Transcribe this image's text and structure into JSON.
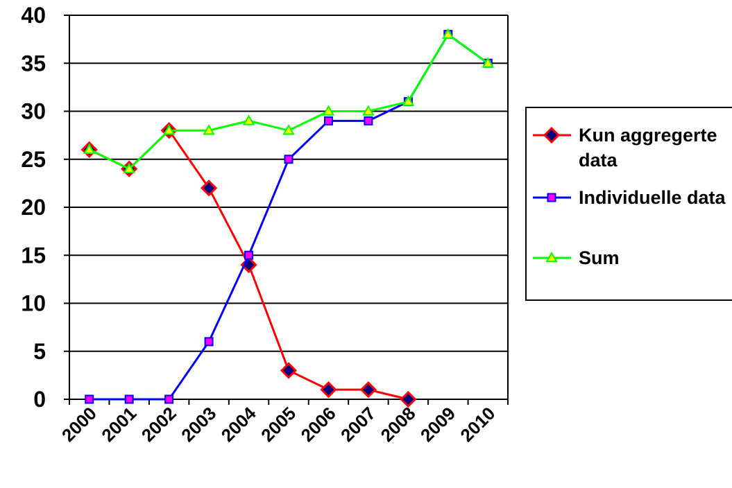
{
  "chart_data": {
    "type": "line",
    "title": "",
    "xlabel": "",
    "ylabel": "",
    "categories": [
      "2000",
      "2001",
      "2002",
      "2003",
      "2004",
      "2005",
      "2006",
      "2007",
      "2008",
      "2009",
      "2010"
    ],
    "ylim": [
      0,
      40
    ],
    "yticks": [
      "0",
      "5",
      "10",
      "15",
      "20",
      "25",
      "30",
      "35",
      "40"
    ],
    "grid": "horizontal",
    "legend_position": "right",
    "series": [
      {
        "name_line1": "Kun aggregerte",
        "name_line2": "data",
        "color": "#ff0000",
        "marker": "diamond",
        "marker_fill": "#000080",
        "values": [
          26,
          24,
          28,
          22,
          14,
          3,
          1,
          1,
          0,
          null,
          null
        ]
      },
      {
        "name_line1": "Individuelle data",
        "name_line2": "",
        "color": "#0000ff",
        "marker": "square",
        "marker_fill": "#ff00ff",
        "values": [
          0,
          0,
          0,
          6,
          15,
          25,
          29,
          29,
          31,
          38,
          35
        ]
      },
      {
        "name_line1": "Sum",
        "name_line2": "",
        "color": "#00ff00",
        "marker": "triangle",
        "marker_fill": "#ffff00",
        "values": [
          26,
          24,
          28,
          28,
          29,
          28,
          30,
          30,
          31,
          38,
          35
        ]
      }
    ]
  }
}
